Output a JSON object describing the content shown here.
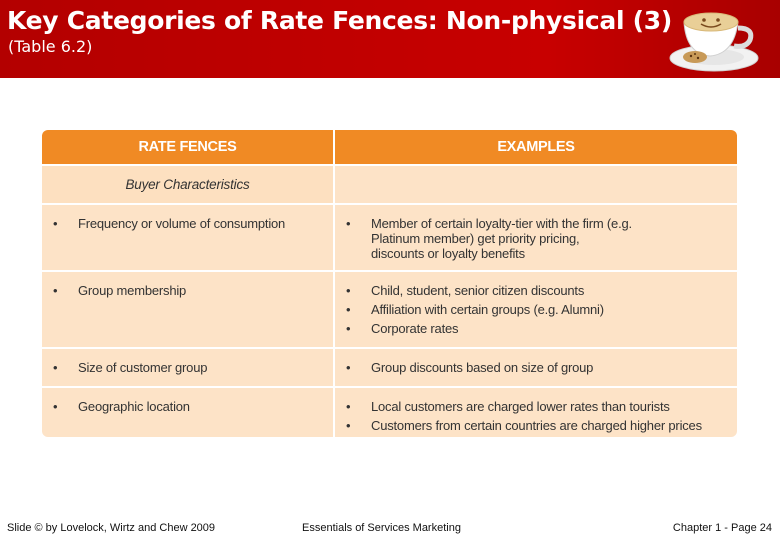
{
  "slide": {
    "title": "Key Categories of Rate Fences: Non-physical (3)",
    "subtitle": "(Table 6.2)"
  },
  "table": {
    "headers": [
      "RATE FENCES",
      "EXAMPLES"
    ],
    "section_label": "Buyer Characteristics",
    "rows": [
      {
        "fence": "Frequency or volume of consumption",
        "examples": [
          "Member of certain loyalty-tier with the firm (e.g. Platinum member) get priority pricing, discounts or loyalty benefits"
        ]
      },
      {
        "fence": "Group membership",
        "examples": [
          "Child, student, senior citizen discounts",
          "Affiliation with certain groups (e.g. Alumni)",
          "Corporate rates"
        ]
      },
      {
        "fence": "Size of customer group",
        "examples": [
          "Group discounts based on size of group"
        ]
      },
      {
        "fence": "Geographic location",
        "examples": [
          "Local customers are charged lower rates than tourists",
          "Customers from certain countries are charged higher prices"
        ]
      }
    ]
  },
  "footer": {
    "left": "Slide © by Lovelock, Wirtz and Chew 2009",
    "center": "Essentials of Services Marketing",
    "right": "Chapter 1 - Page 24"
  },
  "colors": {
    "header_red": "#c00000",
    "table_orange": "#f08a24",
    "cell_peach": "#fde3c7"
  },
  "icons": {
    "logo": "coffee-cup-smiley-icon"
  }
}
